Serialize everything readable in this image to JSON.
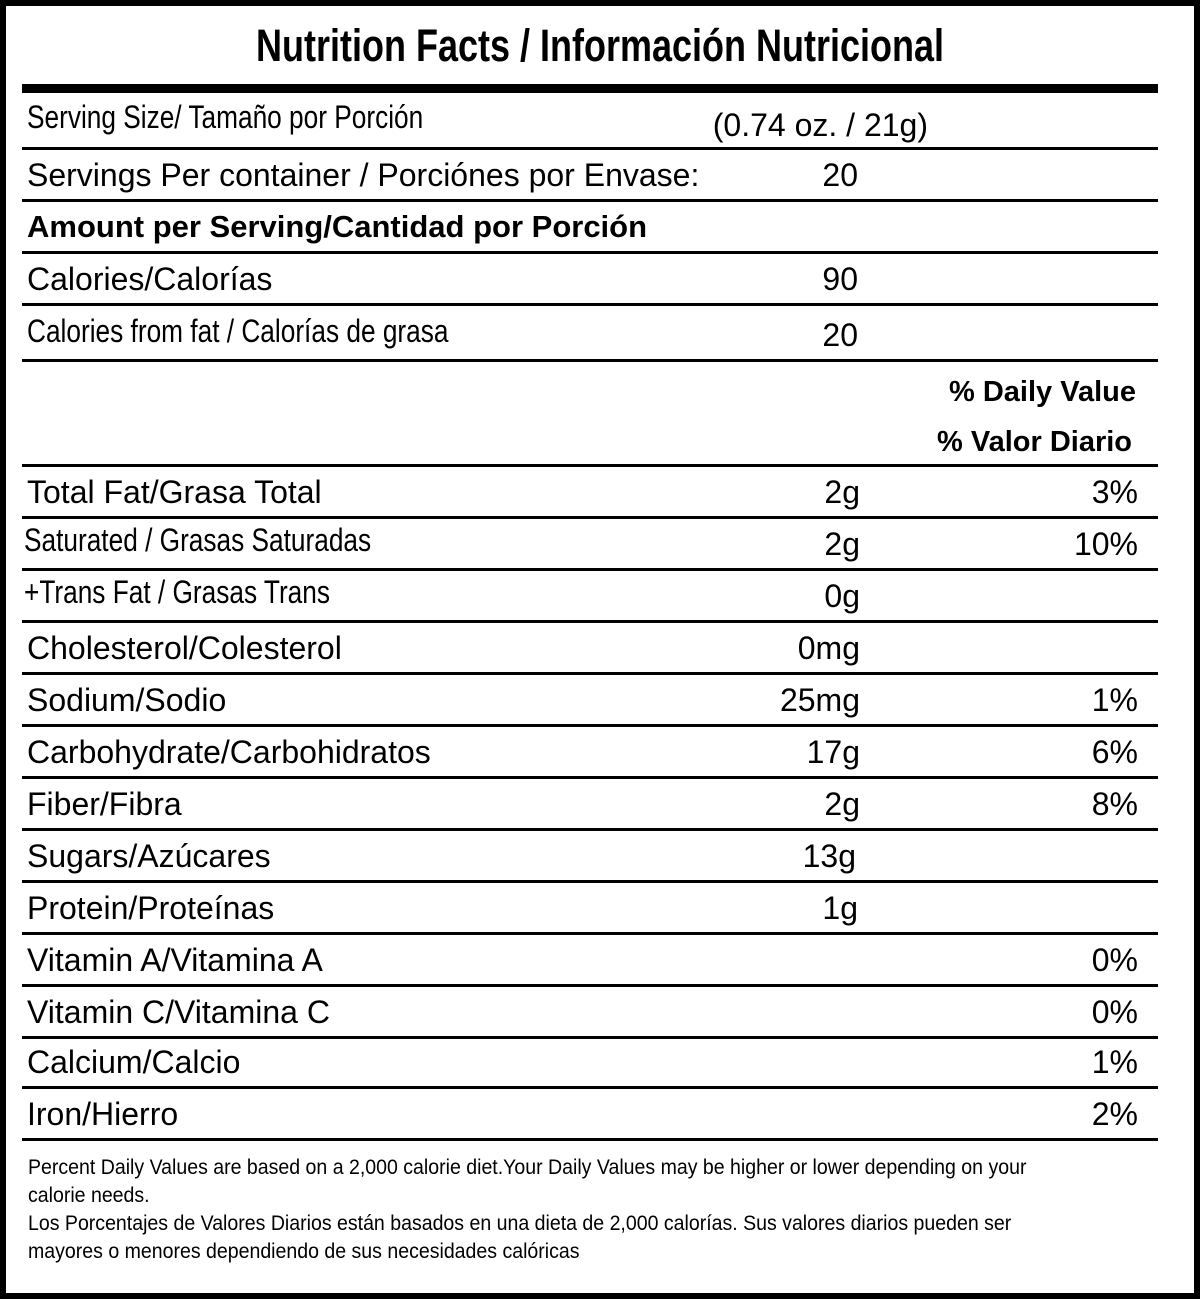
{
  "title": "Nutrition Facts / Información Nutricional",
  "serving_size": {
    "label": "Serving Size/ Tamaño por Porción",
    "value": "(0.74 oz. / 21g)"
  },
  "servings_per_container": {
    "label": "Servings Per container / Porciónes por Envase:",
    "value": "20"
  },
  "amount_header": "Amount per Serving/Cantidad por Porción",
  "calories": {
    "label": "Calories/Calorías",
    "value": "90"
  },
  "calories_from_fat": {
    "label": "Calories from fat / Calorías de grasa",
    "value": "20"
  },
  "daily_value_header": {
    "line1": "% Daily Value",
    "line2": "% Valor Diario"
  },
  "nutrients": [
    {
      "label": "Total Fat/Grasa Total",
      "amount": "2g",
      "dv": "3%"
    },
    {
      "label": "Saturated / Grasas Saturadas",
      "amount": "2g",
      "dv": "10%"
    },
    {
      "label": "+Trans Fat / Grasas Trans",
      "amount": "0g",
      "dv": ""
    },
    {
      "label": "Cholesterol/Colesterol",
      "amount": "0mg",
      "dv": ""
    },
    {
      "label": "Sodium/Sodio",
      "amount": "25mg",
      "dv": "1%"
    },
    {
      "label": "Carbohydrate/Carbohidratos",
      "amount": "17g",
      "dv": "6%"
    },
    {
      "label": "Fiber/Fibra",
      "amount": "2g",
      "dv": "8%"
    },
    {
      "label": "Sugars/Azúcares",
      "amount": "13g",
      "dv": ""
    },
    {
      "label": "Protein/Proteínas",
      "amount": "1g",
      "dv": ""
    },
    {
      "label": "Vitamin A/Vitamina A",
      "amount": "",
      "dv": "0%"
    },
    {
      "label": "Vitamin C/Vitamina C",
      "amount": "",
      "dv": "0%"
    },
    {
      "label": "Calcium/Calcio",
      "amount": "",
      "dv": "1%"
    },
    {
      "label": "Iron/Hierro",
      "amount": "",
      "dv": "2%"
    }
  ],
  "footnote": {
    "line1": "Percent Daily Values are based on a 2,000 calorie diet.Your Daily Values may be higher or lower depending on your",
    "line2": "calorie needs.",
    "line3": "Los Porcentajes de Valores Diarios están basados en una dieta de 2,000 calorías. Sus valores diarios pueden ser",
    "line4": "mayores o menores dependiendo de sus necesidades calóricas"
  }
}
